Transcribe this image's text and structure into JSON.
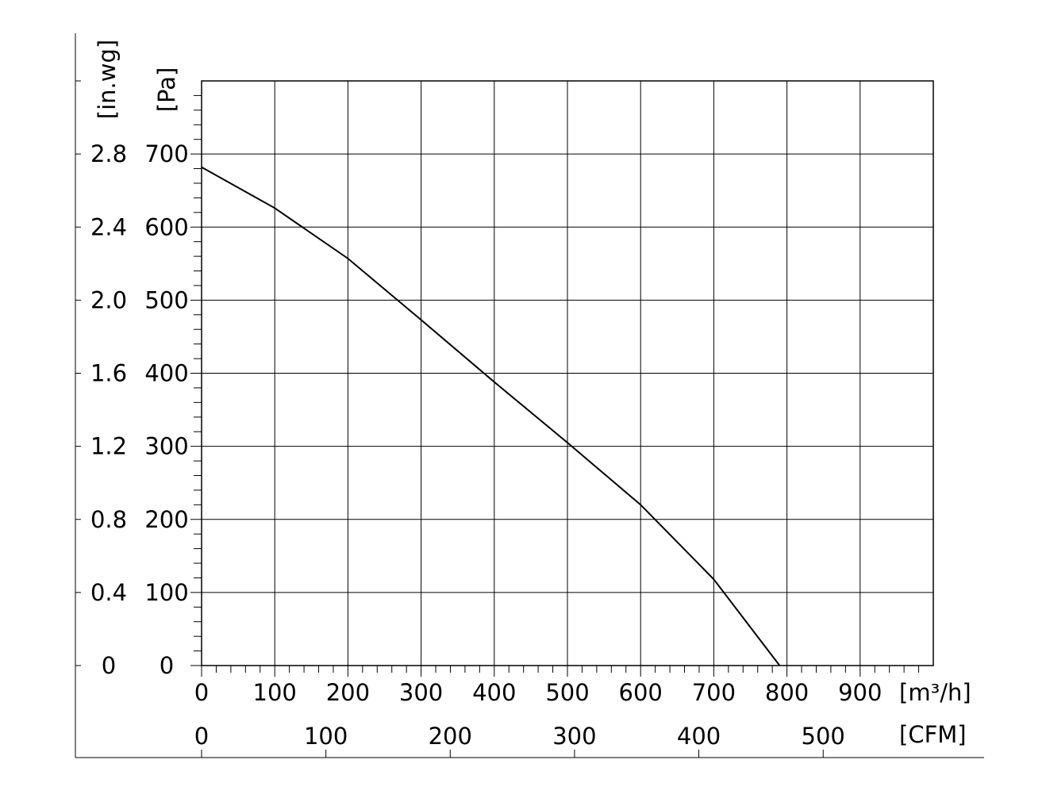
{
  "chart_data": {
    "type": "line",
    "x_label": "[m³/h]",
    "x2_label": "[CFM]",
    "y_label": "[Pa]",
    "y2_label": "[in.wg]",
    "x": [
      0,
      100,
      200,
      300,
      400,
      500,
      600,
      700,
      790
    ],
    "series": [
      {
        "color": "#000000",
        "values": [
          682,
          626,
          557,
          473,
          388,
          305,
          220,
          118,
          0
        ]
      }
    ],
    "xlim": [
      0,
      1000
    ],
    "xticks": [
      0,
      100,
      200,
      300,
      400,
      500,
      600,
      700,
      800,
      900
    ],
    "x2lim": [
      0,
      588.6
    ],
    "x2ticks": [
      0,
      100,
      200,
      300,
      400,
      500
    ],
    "ylim": [
      0,
      800
    ],
    "yticks": [
      0,
      100,
      200,
      300,
      400,
      500,
      600,
      700
    ],
    "y2lim": [
      0,
      3.2
    ],
    "y2ticks": [
      0,
      0.4,
      0.8,
      1.2,
      1.6,
      {
        "value": 2,
        "label": "2.0"
      },
      2.4,
      2.8
    ],
    "grid": true
  }
}
